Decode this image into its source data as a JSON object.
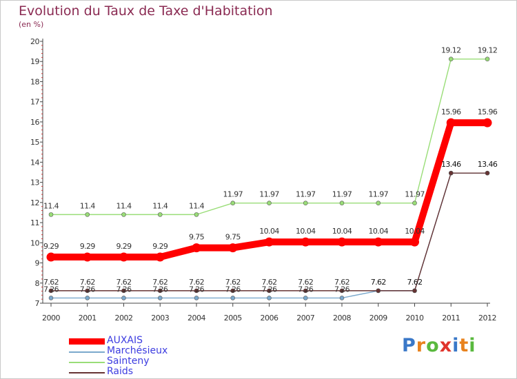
{
  "title": "Evolution du Taux de Taxe d'Habitation",
  "subtitle": "(en %)",
  "brand": {
    "letters": [
      "P",
      "r",
      "o",
      "x",
      "i",
      "t",
      "i"
    ],
    "colors": [
      "#3a78c8",
      "#e8821e",
      "#59b93e",
      "#e0342c",
      "#3a78c8",
      "#e8821e",
      "#59b93e"
    ]
  },
  "chart_data": {
    "type": "line",
    "title": "Evolution du Taux de Taxe d'Habitation",
    "ylabel": "(en %)",
    "x": [
      "2000",
      "2001",
      "2002",
      "2003",
      "2004",
      "2005",
      "2006",
      "2007",
      "2008",
      "2009",
      "2010",
      "2011",
      "2012"
    ],
    "ylim": [
      7,
      20
    ],
    "yticks": [
      "7",
      "8",
      "9",
      "10",
      "11",
      "12",
      "13",
      "14",
      "15",
      "16",
      "17",
      "18",
      "19",
      "20"
    ],
    "grid": false,
    "legend_position": "bottom-left",
    "series": [
      {
        "name": "AUXAIS",
        "color": "#ff0000",
        "values": [
          9.29,
          9.29,
          9.29,
          9.29,
          9.75,
          9.75,
          10.04,
          10.04,
          10.04,
          10.04,
          10.04,
          15.96,
          15.96
        ],
        "labels": [
          "9.29",
          "9.29",
          "9.29",
          "9.29",
          "9.75",
          "9.75",
          "10.04",
          "10.04",
          "10.04",
          "10.04",
          "10.04",
          "15.96",
          "15.96"
        ]
      },
      {
        "name": "Marchésieux",
        "color": "#7aa8cc",
        "values": [
          7.26,
          7.26,
          7.26,
          7.26,
          7.26,
          7.26,
          7.26,
          7.26,
          7.26,
          7.62,
          7.62,
          13.46,
          13.46
        ],
        "labels": [
          "7.26",
          "7.26",
          "7.26",
          "7.26",
          "7.26",
          "7.26",
          "7.26",
          "7.26",
          "7.26",
          "",
          "",
          "",
          ""
        ]
      },
      {
        "name": "Sainteny",
        "color": "#99dd77",
        "values": [
          11.4,
          11.4,
          11.4,
          11.4,
          11.4,
          11.97,
          11.97,
          11.97,
          11.97,
          11.97,
          11.97,
          19.12,
          19.12
        ],
        "labels": [
          "11.4",
          "11.4",
          "11.4",
          "11.4",
          "11.4",
          "11.97",
          "11.97",
          "11.97",
          "11.97",
          "11.97",
          "11.97",
          "19.12",
          "19.12"
        ]
      },
      {
        "name": "Raids",
        "color": "#663333",
        "values": [
          7.62,
          7.62,
          7.62,
          7.62,
          7.62,
          7.62,
          7.62,
          7.62,
          7.62,
          7.62,
          7.62,
          13.46,
          13.46
        ],
        "labels": [
          "7.62",
          "7.62",
          "7.62",
          "7.62",
          "7.62",
          "7.62",
          "7.62",
          "7.62",
          "7.62",
          "7.62",
          "7.62",
          "13.46",
          "13.46"
        ]
      }
    ]
  }
}
